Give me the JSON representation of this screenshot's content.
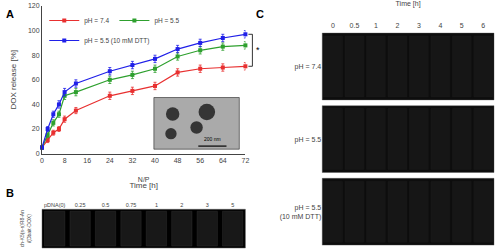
{
  "chart_data": [
    {
      "type": "line",
      "title": "A",
      "xlabel": "Time [h]",
      "ylabel": "DOX release [%]",
      "x": [
        0,
        2,
        4,
        6,
        8,
        12,
        24,
        32,
        40,
        48,
        56,
        64,
        72
      ],
      "series": [
        {
          "name": "pH = 7.4",
          "color": "#e83030",
          "values": [
            5,
            11,
            17,
            20,
            28,
            35,
            47,
            51,
            55,
            66,
            69,
            70,
            71
          ],
          "errors": [
            1.5,
            2,
            2,
            2,
            2.5,
            2.5,
            3,
            3,
            3,
            3,
            3,
            3,
            3
          ]
        },
        {
          "name": "pH = 5.5",
          "color": "#2ea02e",
          "values": [
            5,
            15,
            25,
            32,
            47,
            50,
            60,
            64,
            69,
            79,
            84,
            87,
            88
          ],
          "errors": [
            1.5,
            2,
            2.5,
            2.5,
            3,
            3,
            3,
            3,
            3,
            3,
            3,
            3,
            3
          ]
        },
        {
          "name": "pH = 5.5 (10 mM DTT)",
          "color": "#2020e8",
          "values": [
            5,
            20,
            32,
            40,
            50,
            57,
            67,
            72,
            77,
            85,
            90,
            94,
            97
          ],
          "errors": [
            1.5,
            2,
            2.5,
            3,
            3,
            3,
            3,
            3,
            3,
            3,
            3,
            3,
            3
          ]
        }
      ],
      "xlim": [
        0,
        72
      ],
      "ylim": [
        0,
        120
      ],
      "xticks": [
        0,
        8,
        16,
        24,
        32,
        40,
        48,
        56,
        64,
        72
      ],
      "yticks": [
        0,
        20,
        40,
        60,
        80,
        100,
        120
      ],
      "grid": false,
      "legend": "upper left",
      "marker": "square",
      "annotations": [
        {
          "text": "*"
        },
        {
          "text": "200 nm"
        }
      ]
    },
    {
      "type": "gel",
      "title": "B",
      "xlabel": "N/P",
      "ylabel": "ch-K5(s-s)R8-An\n/(Dbait-DOX)",
      "categories": [
        "pDNA(0)",
        "0.25",
        "0.5",
        "0.75",
        "1",
        "2",
        "3",
        "5"
      ]
    },
    {
      "type": "gel",
      "title": "C",
      "xlabel": "Time [h]",
      "categories": [
        "0",
        "0.5",
        "1",
        "2",
        "3",
        "4",
        "5",
        "6"
      ],
      "annotations": [
        "pH = 7.4",
        "pH = 5.5",
        "pH = 5.5\n(10 mM DTT)"
      ]
    }
  ]
}
